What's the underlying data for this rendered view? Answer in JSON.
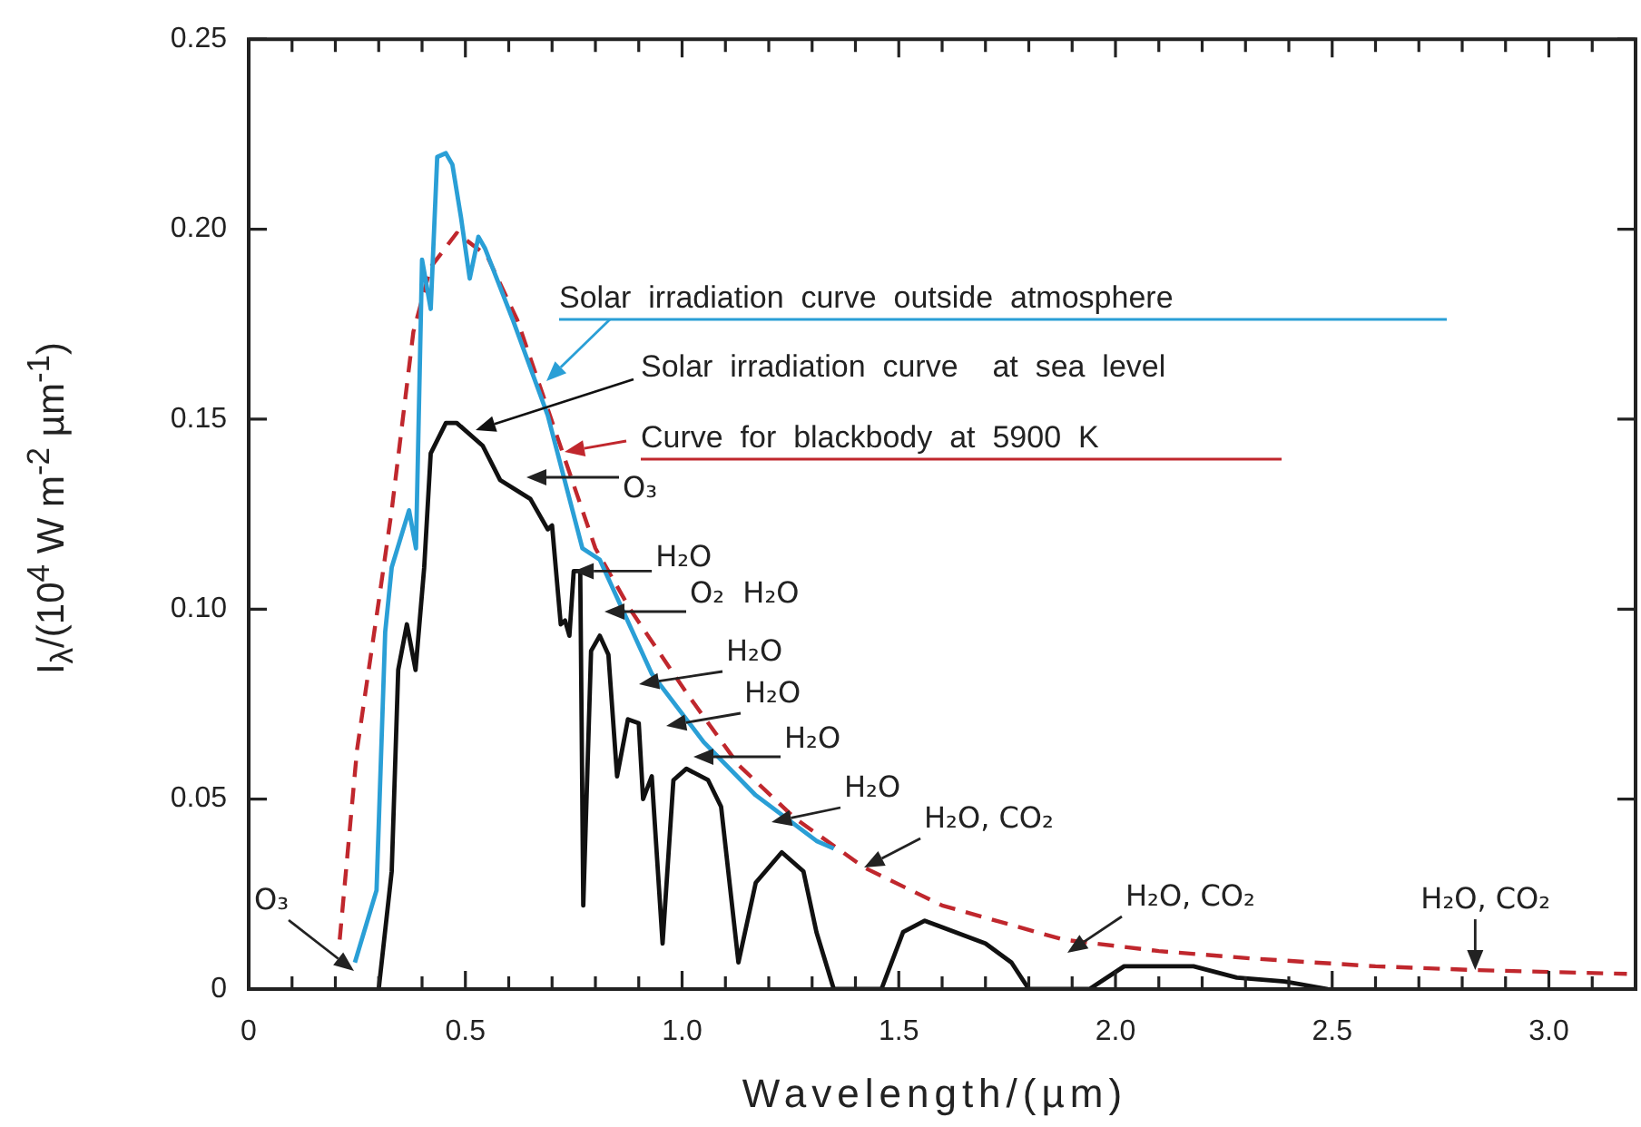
{
  "chart_data": {
    "type": "line",
    "xlabel": "Wavelength/(µm)",
    "ylabel": "I$_{λ}$/(10$^{4}$ W m$^{-2}$ µm$^{-1}$)",
    "xlim": [
      0,
      3.2
    ],
    "ylim": [
      0,
      0.25
    ],
    "xticks": [
      0,
      {
        "value": 0.1,
        "label": null
      },
      {
        "value": 0.2,
        "label": null
      },
      {
        "value": 0.3,
        "label": null
      },
      {
        "value": 0.4,
        "label": null
      },
      0.5,
      {
        "value": 0.6,
        "label": null
      },
      {
        "value": 0.7,
        "label": null
      },
      {
        "value": 0.8,
        "label": null
      },
      {
        "value": 0.9,
        "label": null
      },
      {
        "value": 1,
        "label": "1.0"
      },
      {
        "value": 1.1,
        "label": null
      },
      {
        "value": 1.2,
        "label": null
      },
      {
        "value": 1.3,
        "label": null
      },
      {
        "value": 1.4,
        "label": null
      },
      1.5,
      {
        "value": 1.6,
        "label": null
      },
      {
        "value": 1.7,
        "label": null
      },
      {
        "value": 1.8,
        "label": null
      },
      {
        "value": 1.9,
        "label": null
      },
      {
        "value": 2,
        "label": "2.0"
      },
      {
        "value": 2.1,
        "label": null
      },
      {
        "value": 2.2,
        "label": null
      },
      {
        "value": 2.3,
        "label": null
      },
      {
        "value": 2.4,
        "label": null
      },
      2.5,
      {
        "value": 2.6,
        "label": null
      },
      {
        "value": 2.7,
        "label": null
      },
      {
        "value": 2.8,
        "label": null
      },
      {
        "value": 2.9,
        "label": null
      },
      {
        "value": 3,
        "label": "3.0"
      },
      {
        "value": 3.1,
        "label": null
      }
    ],
    "yticks": [
      0,
      0.05,
      {
        "value": 0.1,
        "label": "0.10"
      },
      0.15,
      {
        "value": 0.2,
        "label": "0.20"
      },
      0.25
    ],
    "grid": false,
    "legend": "top",
    "marker": "none",
    "series": [
      {
        "name": "Solar irradiation curve outside atmosphere",
        "color": "#2a9fd6",
        "x": [
          0.245,
          0.295,
          0.315,
          0.33,
          0.37,
          0.386,
          0.4,
          0.42,
          0.435,
          0.455,
          0.47,
          0.49,
          0.51,
          0.53,
          0.545,
          0.61,
          0.69,
          0.77,
          0.81,
          0.93,
          1.05,
          1.17,
          1.31,
          1.35
        ],
        "values": [
          0.007,
          0.026,
          0.094,
          0.111,
          0.126,
          0.116,
          0.192,
          0.179,
          0.219,
          0.22,
          0.217,
          0.203,
          0.187,
          0.198,
          0.195,
          0.176,
          0.151,
          0.116,
          0.113,
          0.083,
          0.065,
          0.051,
          0.039,
          0.037
        ]
      },
      {
        "name": "Solar irradiation curve  at sea level",
        "color": "#111111",
        "x": [
          0.3,
          0.33,
          0.345,
          0.365,
          0.385,
          0.405,
          0.42,
          0.455,
          0.48,
          0.54,
          0.58,
          0.65,
          0.69,
          0.7,
          0.72,
          0.73,
          0.74,
          0.75,
          0.765,
          0.772,
          0.79,
          0.81,
          0.83,
          0.85,
          0.875,
          0.9,
          0.91,
          0.93,
          0.955,
          0.98,
          1.01,
          1.06,
          1.09,
          1.13,
          1.17,
          1.23,
          1.28,
          1.31,
          1.35,
          1.46,
          1.51,
          1.56,
          1.7,
          1.76,
          1.8,
          1.94,
          2.02,
          2.18,
          2.28,
          2.39,
          2.49
        ],
        "values": [
          0,
          0.031,
          0.084,
          0.096,
          0.084,
          0.111,
          0.141,
          0.149,
          0.149,
          0.143,
          0.134,
          0.129,
          0.121,
          0.122,
          0.096,
          0.097,
          0.093,
          0.11,
          0.11,
          0.022,
          0.089,
          0.093,
          0.088,
          0.056,
          0.071,
          0.07,
          0.05,
          0.056,
          0.012,
          0.055,
          0.058,
          0.055,
          0.048,
          0.007,
          0.028,
          0.036,
          0.031,
          0.015,
          0,
          0,
          0.015,
          0.018,
          0.012,
          0.007,
          0,
          0,
          0.006,
          0.006,
          0.003,
          0.002,
          0
        ]
      },
      {
        "name": "Curve for blackbody at 5900 K",
        "color": "#c0272d",
        "line_style": "dashed",
        "x": [
          0.21,
          0.25,
          0.3,
          0.33,
          0.38,
          0.42,
          0.48,
          0.55,
          0.62,
          0.68,
          0.8,
          0.88,
          1.01,
          1.13,
          1.26,
          1.42,
          1.6,
          1.88,
          2.1,
          2.32,
          2.6,
          2.83,
          3.18
        ],
        "values": [
          0.013,
          0.063,
          0.102,
          0.126,
          0.173,
          0.19,
          0.199,
          0.193,
          0.176,
          0.156,
          0.116,
          0.1,
          0.078,
          0.059,
          0.045,
          0.032,
          0.022,
          0.013,
          0.01,
          0.008,
          0.006,
          0.005,
          0.004
        ]
      }
    ],
    "annotations": [
      "O₃",
      "O₃",
      {
        "text": "H₂O",
        "x": 0.75,
        "y": 0.11
      },
      "O₂  H₂O",
      "H₂O",
      "H₂O",
      "H₂O",
      "H₂O",
      {
        "text": "H₂O, CO₂",
        "x": 1.42,
        "y": 0.032
      },
      "H₂O, CO₂",
      {
        "text": "H₂O, CO₂",
        "x": 2.83,
        "y": 0.005
      }
    ]
  }
}
